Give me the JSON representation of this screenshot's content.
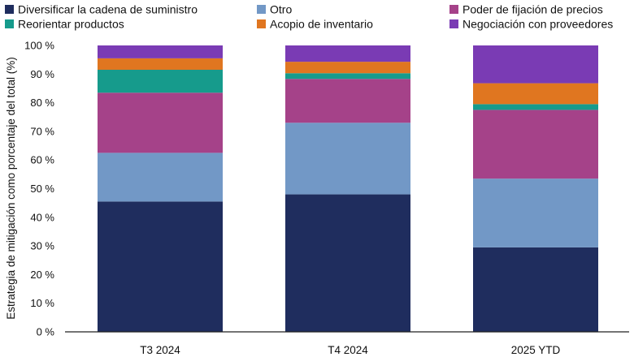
{
  "chart_data": {
    "type": "bar",
    "stacked": true,
    "categories": [
      "T3 2024",
      "T4 2024",
      "2025 YTD"
    ],
    "series": [
      {
        "name": "Diversificar la cadena de suministro",
        "color": "#1f2d5e",
        "values": [
          45.5,
          48.0,
          29.5
        ]
      },
      {
        "name": "Otro",
        "color": "#7298c6",
        "values": [
          17.0,
          25.0,
          24.0
        ]
      },
      {
        "name": "Poder de fijación de precios",
        "color": "#a54289",
        "values": [
          21.0,
          15.3,
          24.0
        ]
      },
      {
        "name": "Reorientar productos",
        "color": "#169b8c",
        "values": [
          8.0,
          2.0,
          2.0
        ]
      },
      {
        "name": "Acopio de inventario",
        "color": "#e07620",
        "values": [
          4.0,
          4.0,
          7.3
        ]
      },
      {
        "name": "Negociación con proveedores",
        "color": "#7a3bb4",
        "values": [
          4.5,
          5.7,
          13.2
        ]
      }
    ],
    "ylabel": "Estrategia de mitigación como porcentaje del total (%)",
    "xlabel": "",
    "ylim": [
      0,
      100
    ],
    "yticks": [
      "0 %",
      "10 %",
      "20 %",
      "30 %",
      "40 %",
      "50 %",
      "60 %",
      "70 %",
      "80 %",
      "90 %",
      "100 %"
    ],
    "grid": false,
    "legend_position": "top-left"
  }
}
